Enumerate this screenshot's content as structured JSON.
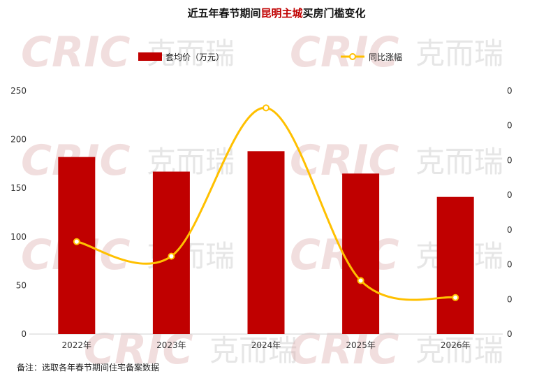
{
  "chart_data": {
    "type": "bar+line",
    "title_parts": [
      "近五年春节期间",
      "昆明主城",
      "买房门槛变化"
    ],
    "categories": [
      "2022年",
      "2023年",
      "2024年",
      "2025年",
      "2026年"
    ],
    "series": [
      {
        "name": "套均价（万元）",
        "type": "bar",
        "axis": "left",
        "values": [
          182,
          167,
          188,
          165,
          141
        ]
      },
      {
        "name": "同比涨幅",
        "type": "line",
        "axis": "right",
        "values": [
          0.38,
          0.32,
          0.93,
          0.22,
          0.15
        ]
      }
    ],
    "y_left": {
      "min": 0,
      "max": 250,
      "ticks": [
        0,
        50,
        100,
        150,
        200,
        250
      ]
    },
    "y_right": {
      "ticks": [
        "0",
        "0",
        "0",
        "0",
        "0",
        "0",
        "0",
        "0"
      ]
    },
    "legend_position": "top",
    "grid": false,
    "colors": {
      "bar": "#c00000",
      "line": "#ffc000",
      "accent": "#c00000"
    }
  },
  "note": "备注：选取各年春节期间住宅备案数据",
  "watermark": {
    "latin": "CRIC",
    "chinese": "克而瑞"
  }
}
